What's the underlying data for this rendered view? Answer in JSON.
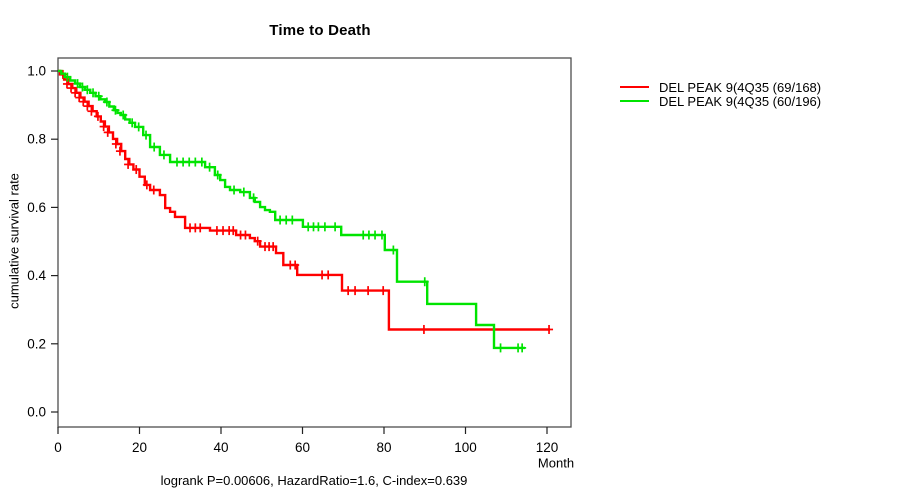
{
  "header": {
    "title": "Time to Death"
  },
  "axes": {
    "xlabel": "Month",
    "ylabel": "cumulative survival rate"
  },
  "footer": {
    "annotation": "logrank P=0.00606, HazardRatio=1.6, C-index=0.639"
  },
  "legend": {
    "items": [
      {
        "label": "DEL PEAK 9(4Q35 (69/168)",
        "color": "#ff0000"
      },
      {
        "label": "DEL PEAK 9(4Q35 (60/196)",
        "color": "#00e400"
      }
    ]
  },
  "chart_data": {
    "type": "line",
    "subtype": "kaplan-meier-step",
    "title": "Time to Death",
    "xlabel": "Month",
    "ylabel": "cumulative survival rate",
    "xlim": [
      0,
      126
    ],
    "ylim": [
      0,
      1.04
    ],
    "xticks": [
      0,
      20,
      40,
      60,
      80,
      100,
      120
    ],
    "yticks": [
      0.0,
      0.2,
      0.4,
      0.6,
      0.8,
      1.0
    ],
    "grid": false,
    "legend_position": "right-outside",
    "annotation": "logrank P=0.00606, HazardRatio=1.6, C-index=0.639",
    "series": [
      {
        "name": "DEL PEAK 9(4Q35 (69/168)",
        "color": "#ff0000",
        "events": "69/168",
        "steps": [
          [
            0,
            1.0
          ],
          [
            0.5,
            0.99
          ],
          [
            1.5,
            0.975
          ],
          [
            2.5,
            0.962
          ],
          [
            3.5,
            0.95
          ],
          [
            4.5,
            0.936
          ],
          [
            5.5,
            0.922
          ],
          [
            6.5,
            0.91
          ],
          [
            7.5,
            0.897
          ],
          [
            8.5,
            0.882
          ],
          [
            9.5,
            0.867
          ],
          [
            10.5,
            0.852
          ],
          [
            11.5,
            0.837
          ],
          [
            12.5,
            0.82
          ],
          [
            13.5,
            0.801
          ],
          [
            14.5,
            0.786
          ],
          [
            15.5,
            0.765
          ],
          [
            16.5,
            0.742
          ],
          [
            17.5,
            0.726
          ],
          [
            18.5,
            0.711
          ],
          [
            20.0,
            0.69
          ],
          [
            21.3,
            0.666
          ],
          [
            22.6,
            0.651
          ],
          [
            25.0,
            0.636
          ],
          [
            26.3,
            0.598
          ],
          [
            27.5,
            0.587
          ],
          [
            28.7,
            0.572
          ],
          [
            31.2,
            0.54
          ],
          [
            37.3,
            0.532
          ],
          [
            43.7,
            0.519
          ],
          [
            47.1,
            0.51
          ],
          [
            48.3,
            0.501
          ],
          [
            49.6,
            0.485
          ],
          [
            53.5,
            0.466
          ],
          [
            55.3,
            0.431
          ],
          [
            58.7,
            0.402
          ],
          [
            69.7,
            0.356
          ],
          [
            81.2,
            0.242
          ],
          [
            120.7,
            0.242
          ]
        ],
        "censors": [
          [
            1.2,
            0.99
          ],
          [
            2.2,
            0.962
          ],
          [
            3.2,
            0.95
          ],
          [
            4.2,
            0.936
          ],
          [
            5.2,
            0.922
          ],
          [
            6.2,
            0.91
          ],
          [
            7.2,
            0.897
          ],
          [
            8.2,
            0.882
          ],
          [
            9.8,
            0.867
          ],
          [
            11.2,
            0.837
          ],
          [
            12.2,
            0.82
          ],
          [
            14.2,
            0.786
          ],
          [
            15.2,
            0.765
          ],
          [
            17.2,
            0.726
          ],
          [
            19.2,
            0.711
          ],
          [
            21.8,
            0.666
          ],
          [
            23.5,
            0.651
          ],
          [
            32.4,
            0.54
          ],
          [
            33.7,
            0.54
          ],
          [
            34.9,
            0.54
          ],
          [
            39.0,
            0.532
          ],
          [
            40.5,
            0.532
          ],
          [
            42.0,
            0.532
          ],
          [
            43.0,
            0.532
          ],
          [
            44.8,
            0.519
          ],
          [
            46.0,
            0.519
          ],
          [
            49.0,
            0.501
          ],
          [
            50.8,
            0.485
          ],
          [
            51.8,
            0.485
          ],
          [
            52.8,
            0.485
          ],
          [
            57.0,
            0.431
          ],
          [
            58.2,
            0.431
          ],
          [
            64.8,
            0.402
          ],
          [
            66.3,
            0.402
          ],
          [
            71.2,
            0.356
          ],
          [
            72.9,
            0.356
          ],
          [
            76.1,
            0.356
          ],
          [
            79.8,
            0.356
          ],
          [
            89.8,
            0.242
          ],
          [
            120.5,
            0.242
          ]
        ]
      },
      {
        "name": "DEL PEAK 9(4Q35 (60/196)",
        "color": "#00e400",
        "events": "60/196",
        "steps": [
          [
            0,
            1.0
          ],
          [
            0.8,
            0.992
          ],
          [
            1.7,
            0.982
          ],
          [
            3.0,
            0.972
          ],
          [
            4.2,
            0.963
          ],
          [
            5.4,
            0.953
          ],
          [
            6.6,
            0.945
          ],
          [
            7.9,
            0.936
          ],
          [
            9.2,
            0.926
          ],
          [
            10.4,
            0.917
          ],
          [
            11.5,
            0.909
          ],
          [
            12.6,
            0.896
          ],
          [
            13.7,
            0.885
          ],
          [
            14.6,
            0.877
          ],
          [
            15.4,
            0.871
          ],
          [
            16.5,
            0.858
          ],
          [
            17.6,
            0.848
          ],
          [
            18.9,
            0.836
          ],
          [
            20.9,
            0.812
          ],
          [
            22.6,
            0.777
          ],
          [
            25.0,
            0.754
          ],
          [
            27.5,
            0.733
          ],
          [
            36.1,
            0.718
          ],
          [
            38.5,
            0.695
          ],
          [
            39.8,
            0.68
          ],
          [
            41.0,
            0.66
          ],
          [
            42.2,
            0.651
          ],
          [
            44.7,
            0.645
          ],
          [
            47.1,
            0.628
          ],
          [
            48.3,
            0.616
          ],
          [
            49.6,
            0.601
          ],
          [
            50.8,
            0.592
          ],
          [
            52.0,
            0.587
          ],
          [
            53.3,
            0.563
          ],
          [
            60.1,
            0.543
          ],
          [
            69.5,
            0.519
          ],
          [
            80.2,
            0.475
          ],
          [
            83.2,
            0.382
          ],
          [
            90.6,
            0.317
          ],
          [
            102.6,
            0.255
          ],
          [
            107.0,
            0.188
          ],
          [
            114.6,
            0.188
          ]
        ],
        "censors": [
          [
            2.3,
            0.982
          ],
          [
            4.8,
            0.963
          ],
          [
            6.0,
            0.953
          ],
          [
            7.2,
            0.945
          ],
          [
            8.6,
            0.936
          ],
          [
            10.0,
            0.926
          ],
          [
            12.0,
            0.909
          ],
          [
            14.1,
            0.885
          ],
          [
            16.0,
            0.871
          ],
          [
            18.2,
            0.848
          ],
          [
            19.8,
            0.836
          ],
          [
            21.6,
            0.812
          ],
          [
            23.6,
            0.777
          ],
          [
            26.0,
            0.754
          ],
          [
            29.2,
            0.733
          ],
          [
            30.7,
            0.733
          ],
          [
            32.2,
            0.733
          ],
          [
            33.7,
            0.733
          ],
          [
            35.3,
            0.733
          ],
          [
            37.2,
            0.718
          ],
          [
            39.2,
            0.695
          ],
          [
            43.2,
            0.651
          ],
          [
            45.6,
            0.645
          ],
          [
            48.0,
            0.628
          ],
          [
            54.5,
            0.563
          ],
          [
            56.0,
            0.563
          ],
          [
            57.5,
            0.563
          ],
          [
            61.4,
            0.543
          ],
          [
            62.7,
            0.543
          ],
          [
            63.9,
            0.543
          ],
          [
            65.5,
            0.543
          ],
          [
            68.0,
            0.543
          ],
          [
            74.9,
            0.519
          ],
          [
            76.3,
            0.519
          ],
          [
            77.8,
            0.519
          ],
          [
            79.5,
            0.519
          ],
          [
            82.3,
            0.475
          ],
          [
            90.0,
            0.382
          ],
          [
            108.6,
            0.188
          ],
          [
            112.9,
            0.188
          ],
          [
            113.9,
            0.188
          ]
        ]
      }
    ]
  }
}
